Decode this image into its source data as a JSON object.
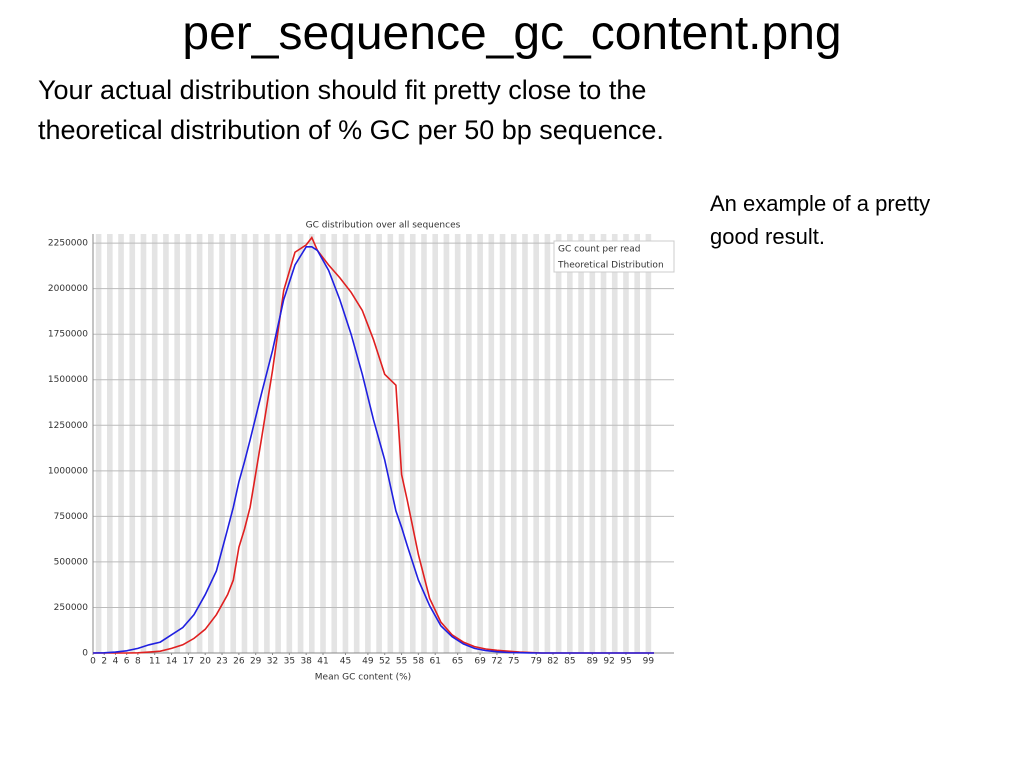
{
  "slide": {
    "title": "per_sequence_gc_content.png",
    "body": [
      "Your actual distribution should fit pretty close to the",
      "theoretical distribution of % GC per 50 bp sequence."
    ],
    "note": [
      "An example of a pretty",
      "good result."
    ]
  },
  "chart_data": {
    "type": "line",
    "title": "GC distribution over all sequences",
    "x_label": "Mean GC content (%)",
    "x": [
      0,
      2,
      4,
      6,
      8,
      10,
      12,
      14,
      16,
      18,
      20,
      22,
      24,
      25,
      26,
      27,
      28,
      30,
      32,
      34,
      36,
      38,
      39,
      40,
      42,
      44,
      46,
      48,
      50,
      52,
      54,
      55,
      56,
      58,
      60,
      62,
      64,
      66,
      68,
      70,
      72,
      74,
      76,
      78,
      80,
      85,
      90,
      95,
      100
    ],
    "series": [
      {
        "name": "GC count per read",
        "color": "#e02020",
        "values": [
          0,
          0,
          0,
          0,
          1000,
          5000,
          10000,
          25000,
          45000,
          80000,
          130000,
          210000,
          320000,
          400000,
          580000,
          680000,
          800000,
          1170000,
          1550000,
          1990000,
          2200000,
          2240000,
          2280000,
          2210000,
          2130000,
          2060000,
          1980000,
          1880000,
          1720000,
          1530000,
          1470000,
          980000,
          840000,
          540000,
          300000,
          170000,
          100000,
          60000,
          35000,
          22000,
          15000,
          10000,
          5000,
          2000,
          0,
          0,
          0,
          0,
          0
        ]
      },
      {
        "name": "Theoretical Distribution",
        "color": "#2020e0",
        "values": [
          0,
          1000,
          5000,
          12000,
          25000,
          45000,
          60000,
          100000,
          140000,
          210000,
          320000,
          450000,
          680000,
          800000,
          940000,
          1050000,
          1170000,
          1420000,
          1660000,
          1940000,
          2130000,
          2230000,
          2230000,
          2210000,
          2100000,
          1940000,
          1750000,
          1530000,
          1280000,
          1060000,
          780000,
          690000,
          590000,
          400000,
          260000,
          150000,
          90000,
          50000,
          25000,
          13000,
          7000,
          3000,
          1500,
          500,
          0,
          0,
          0,
          0,
          0
        ]
      }
    ],
    "xlim": [
      0,
      100
    ],
    "xticks": [
      0,
      2,
      4,
      6,
      8,
      11,
      14,
      17,
      20,
      23,
      26,
      29,
      32,
      35,
      38,
      41,
      45,
      49,
      52,
      55,
      58,
      61,
      65,
      69,
      72,
      75,
      79,
      82,
      85,
      89,
      92,
      95,
      99
    ],
    "ylim": [
      0,
      2300000
    ],
    "yticks": [
      0,
      250000,
      500000,
      750000,
      1000000,
      1250000,
      1500000,
      1750000,
      2000000,
      2250000
    ],
    "grid": true,
    "legend": "top-right"
  }
}
